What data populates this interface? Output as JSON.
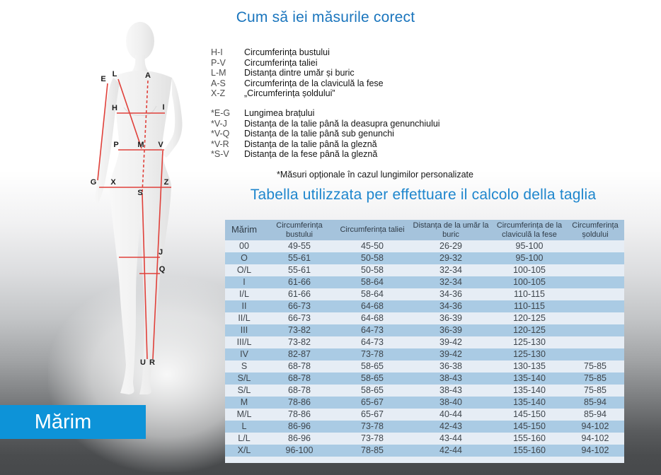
{
  "page": {
    "title_measure": "Cum să iei măsurile corect",
    "title_table": "Tabella utilizzata per effettuare il calcolo della taglia",
    "optional_note": "*Măsuri opționale în cazul lungimilor personalizate",
    "badge_label": "Mărim"
  },
  "legend": {
    "primary": [
      {
        "code": "H-I",
        "label": "Circumferința bustului"
      },
      {
        "code": "P-V",
        "label": "Circumferința taliei"
      },
      {
        "code": "L-M",
        "label": "Distanța dintre umăr și buric"
      },
      {
        "code": "A-S",
        "label": "Circumferința de la claviculă la fese"
      },
      {
        "code": "X-Z",
        "label": "„Circumferința șoldului”"
      }
    ],
    "optional": [
      {
        "code": "*E-G",
        "label": "Lungimea brațului"
      },
      {
        "code": "*V-J",
        "label": "Distanța de la talie până la deasupra genunchiului"
      },
      {
        "code": "*V-Q",
        "label": "Distanța de la talie până sub genunchi"
      },
      {
        "code": "*V-R",
        "label": "Distanța de la talie până la gleznă"
      },
      {
        "code": "*S-V",
        "label": "Distanța de la fese până la gleznă"
      }
    ]
  },
  "mannequin": {
    "labels": {
      "E": "E",
      "L": "L",
      "A": "A",
      "H": "H",
      "I": "I",
      "P": "P",
      "M": "M",
      "V": "V",
      "G": "G",
      "X": "X",
      "Z": "Z",
      "S": "S",
      "J": "J",
      "Q": "Q",
      "U": "U",
      "R": "R"
    }
  },
  "size_table": {
    "columns": [
      "Mărim",
      "Circumferința bustului",
      "Circumferința taliei",
      "Distanța de la umăr la buric",
      "Circumferința de la claviculă la fese",
      "Circumferința șoldului"
    ],
    "rows": [
      [
        "00",
        "49-55",
        "45-50",
        "26-29",
        "95-100",
        ""
      ],
      [
        "O",
        "55-61",
        "50-58",
        "29-32",
        "95-100",
        ""
      ],
      [
        "O/L",
        "55-61",
        "50-58",
        "32-34",
        "100-105",
        ""
      ],
      [
        "I",
        "61-66",
        "58-64",
        "32-34",
        "100-105",
        ""
      ],
      [
        "I/L",
        "61-66",
        "58-64",
        "34-36",
        "110-115",
        ""
      ],
      [
        "II",
        "66-73",
        "64-68",
        "34-36",
        "110-115",
        ""
      ],
      [
        "II/L",
        "66-73",
        "64-68",
        "36-39",
        "120-125",
        ""
      ],
      [
        "III",
        "73-82",
        "64-73",
        "36-39",
        "120-125",
        ""
      ],
      [
        "III/L",
        "73-82",
        "64-73",
        "39-42",
        "125-130",
        ""
      ],
      [
        "IV",
        "82-87",
        "73-78",
        "39-42",
        "125-130",
        ""
      ],
      [
        "S",
        "68-78",
        "58-65",
        "36-38",
        "130-135",
        "75-85"
      ],
      [
        "S/L",
        "68-78",
        "58-65",
        "38-43",
        "135-140",
        "75-85"
      ],
      [
        "S/L",
        "68-78",
        "58-65",
        "38-43",
        "135-140",
        "75-85"
      ],
      [
        "M",
        "78-86",
        "65-67",
        "38-40",
        "135-140",
        "85-94"
      ],
      [
        "M/L",
        "78-86",
        "65-67",
        "40-44",
        "145-150",
        "85-94"
      ],
      [
        "L",
        "86-96",
        "73-78",
        "42-43",
        "145-150",
        "94-102"
      ],
      [
        "L/L",
        "86-96",
        "73-78",
        "43-44",
        "155-160",
        "94-102"
      ],
      [
        "X/L",
        "96-100",
        "78-85",
        "42-44",
        "155-160",
        "94-102"
      ]
    ]
  },
  "colors": {
    "title_blue": "#1a75bd",
    "title_blue_light": "#1e86cd",
    "table_header_bg": "#a5c3dc",
    "row_light": "#e6edf5",
    "row_stripe": "#aacbe4",
    "cell_text": "#3e454c",
    "badge_bg": "#0d93d8",
    "measure_line_red": "#e0403a",
    "background_bottom": "#47494b"
  }
}
